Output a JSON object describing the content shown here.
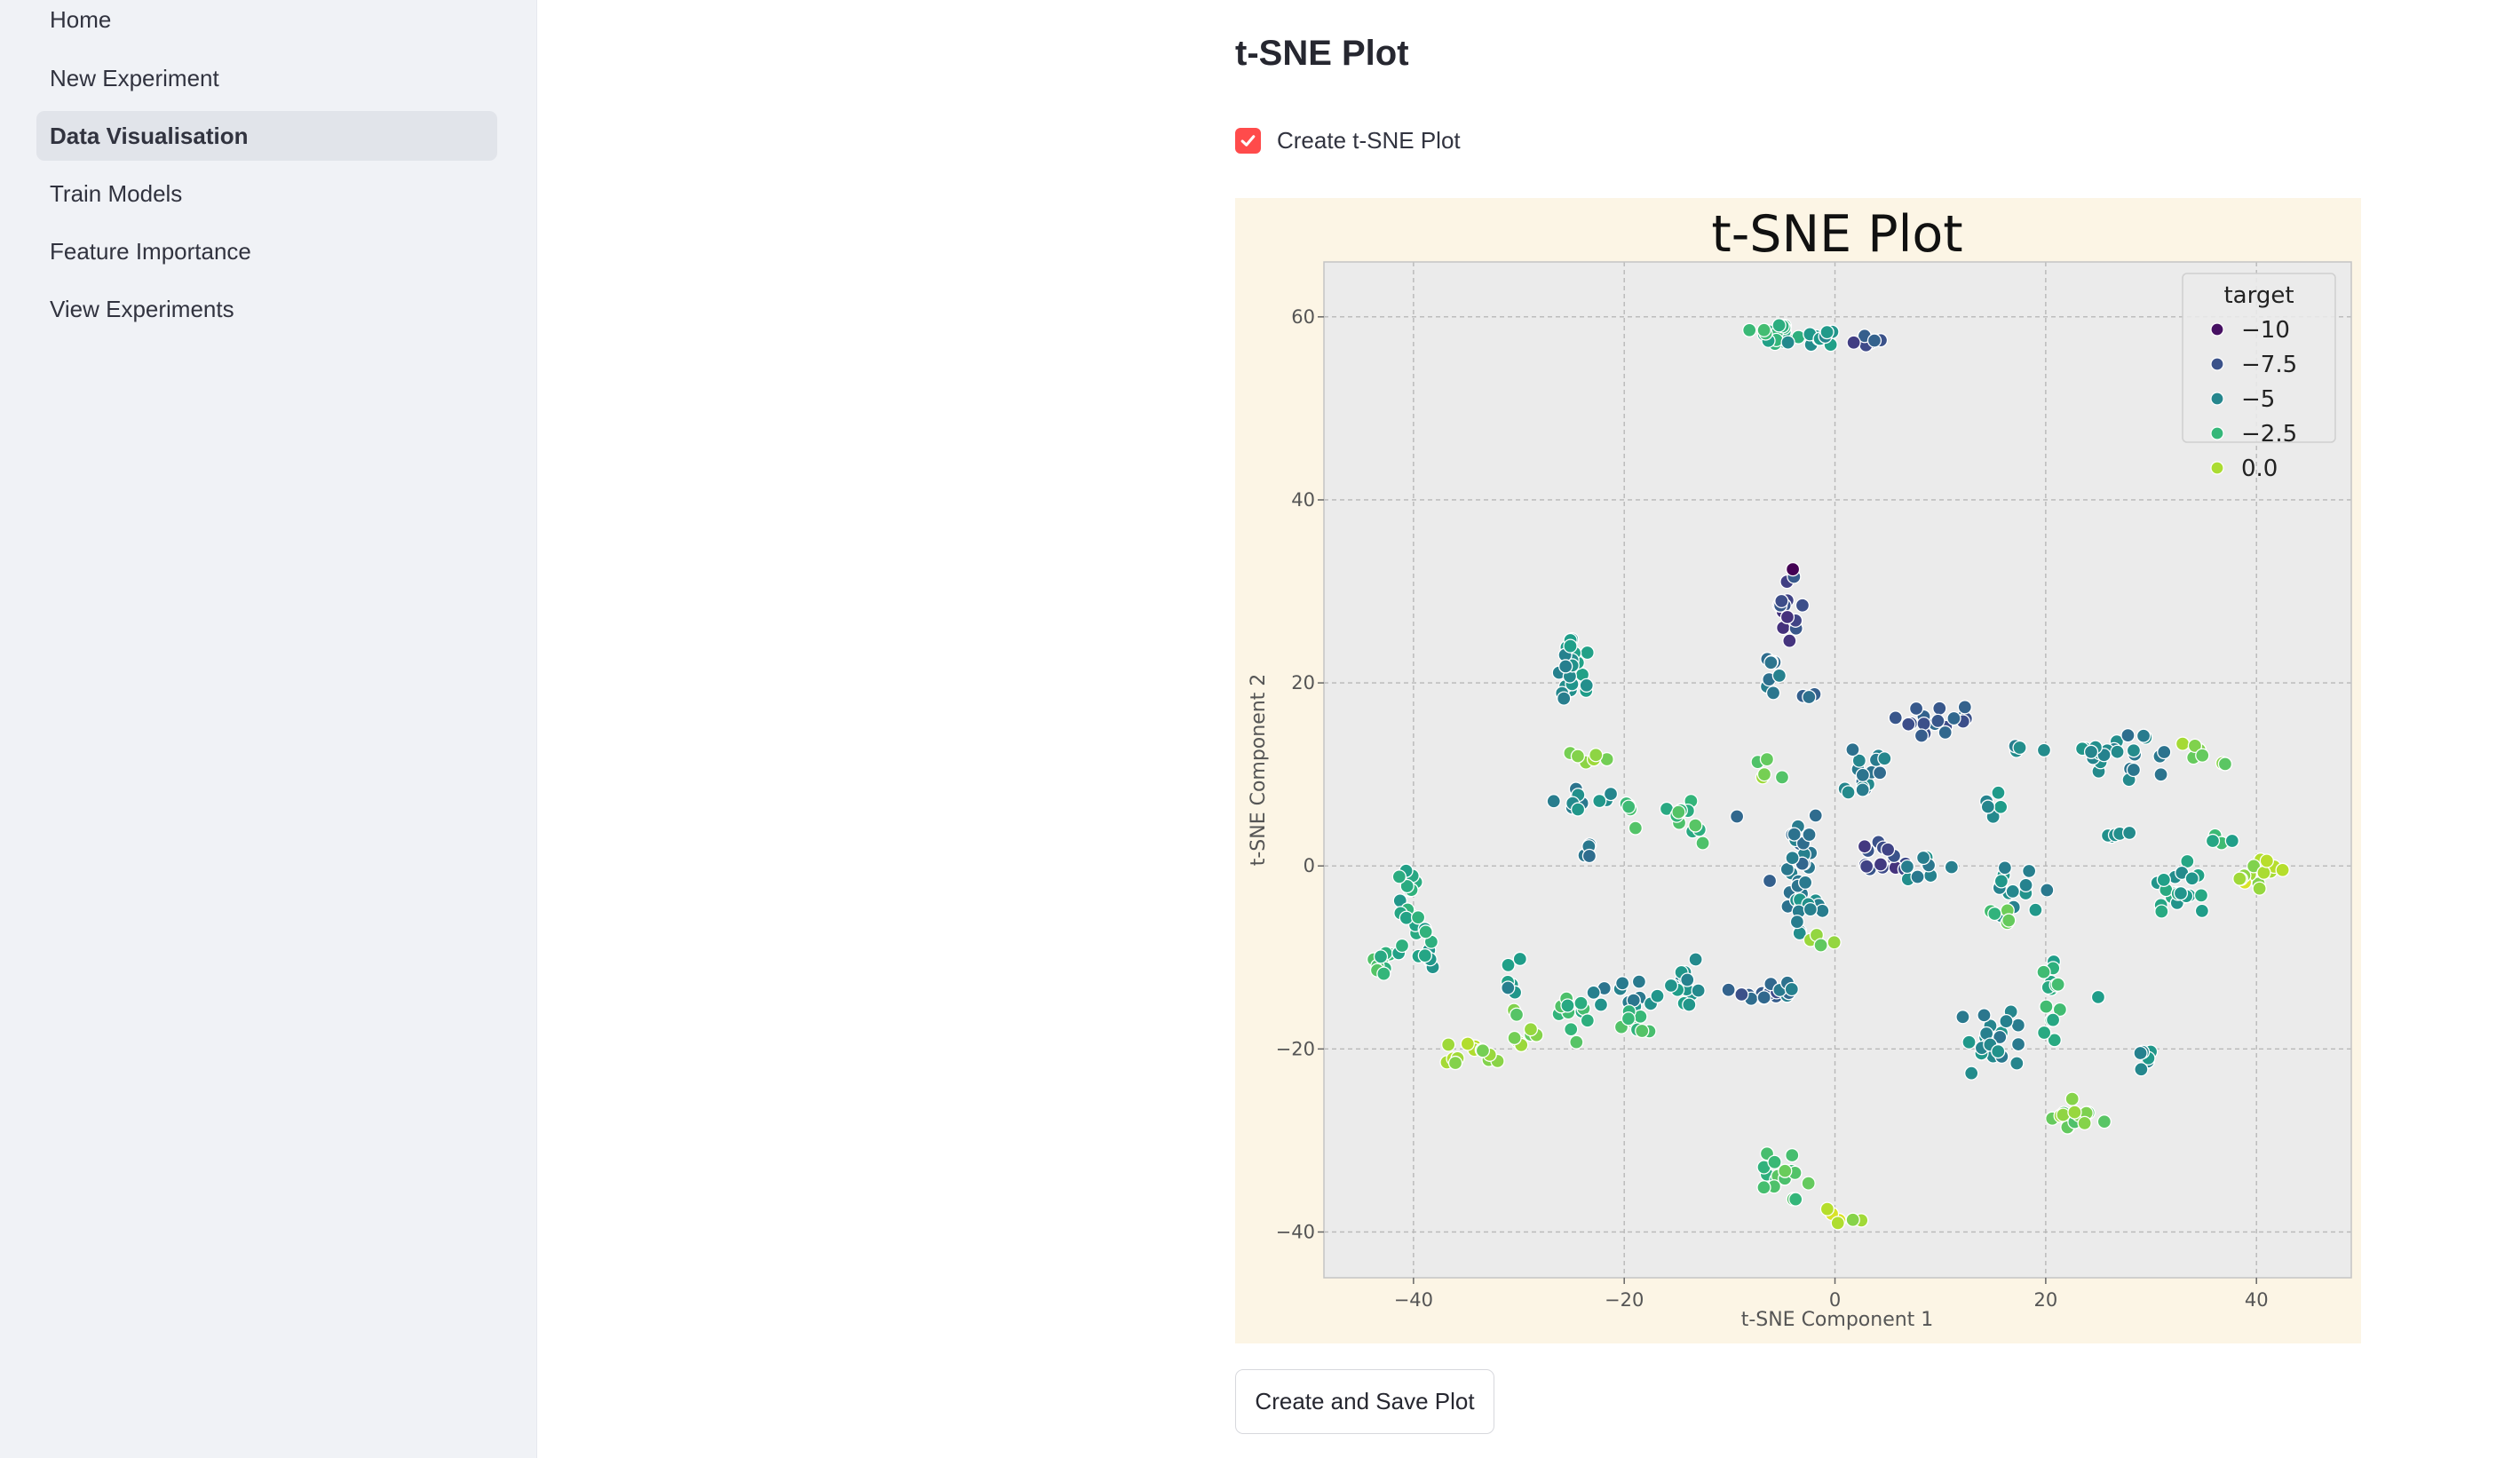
{
  "sidebar": {
    "items": [
      {
        "label": "Home",
        "active": false
      },
      {
        "label": "New Experiment",
        "active": false
      },
      {
        "label": "Data Visualisation",
        "active": true
      },
      {
        "label": "Train Models",
        "active": false
      },
      {
        "label": "Feature Importance",
        "active": false
      },
      {
        "label": "View Experiments",
        "active": false
      }
    ]
  },
  "main": {
    "title": "t-SNE Plot",
    "checkbox": {
      "label": "Create t-SNE Plot",
      "checked": true
    },
    "save_button_label": "Create and Save Plot"
  },
  "colors": {
    "accent": "#ff4b4b",
    "sidebar_bg": "#f0f2f6",
    "figure_bg": "#fcf5e5",
    "axes_bg": "#ebebeb",
    "colormap": "viridis"
  },
  "chart_data": {
    "type": "scatter",
    "title": "t-SNE Plot",
    "xlabel": "t-SNE Component 1",
    "ylabel": "t-SNE Component 2",
    "xlim": [
      -48.5,
      49
    ],
    "ylim": [
      -45,
      66
    ],
    "xticks": [
      -40,
      -20,
      0,
      20,
      40
    ],
    "yticks": [
      -40,
      -20,
      0,
      20,
      40,
      60
    ],
    "grid": true,
    "legend": {
      "title": "target",
      "placement": "top-right",
      "entries": [
        -10.0,
        -7.5,
        -5.0,
        -2.5,
        0.0
      ]
    },
    "color_range": [
      -10.5,
      1.5
    ],
    "clusters": [
      {
        "x": -6,
        "y": 58.5,
        "dx": 2.2,
        "dy": 1.3,
        "n": 20,
        "c": -3
      },
      {
        "x": -2,
        "y": 57.8,
        "dx": 2,
        "dy": 1,
        "n": 10,
        "c": -4.5
      },
      {
        "x": 3,
        "y": 57.2,
        "dx": 1.8,
        "dy": 0.7,
        "n": 8,
        "c": -7.5
      },
      {
        "x": -4.2,
        "y": 28,
        "dx": 1.2,
        "dy": 3,
        "n": 14,
        "c": -8
      },
      {
        "x": -4.2,
        "y": 32.5,
        "dx": 0.3,
        "dy": 0.3,
        "n": 1,
        "c": -10.5
      },
      {
        "x": -6,
        "y": 21,
        "dx": 0.9,
        "dy": 2.2,
        "n": 8,
        "c": -5.5
      },
      {
        "x": -2.5,
        "y": 18.5,
        "dx": 0.5,
        "dy": 0.4,
        "n": 3,
        "c": -6.5
      },
      {
        "x": -25,
        "y": 21,
        "dx": 1.8,
        "dy": 4,
        "n": 22,
        "c": -4.5
      },
      {
        "x": -22.5,
        "y": 12,
        "dx": 1.5,
        "dy": 0.6,
        "n": 6,
        "c": -1
      },
      {
        "x": -24,
        "y": 7,
        "dx": 2,
        "dy": 2.5,
        "n": 12,
        "c": -5
      },
      {
        "x": -23.5,
        "y": 2,
        "dx": 0.5,
        "dy": 1.5,
        "n": 4,
        "c": -6
      },
      {
        "x": -19.5,
        "y": 6,
        "dx": 1,
        "dy": 2,
        "n": 5,
        "c": -2.5
      },
      {
        "x": -14,
        "y": 5,
        "dx": 2.5,
        "dy": 2,
        "n": 12,
        "c": -2.5
      },
      {
        "x": -9.5,
        "y": 5.5,
        "dx": 0.3,
        "dy": 0.3,
        "n": 1,
        "c": -6
      },
      {
        "x": -6,
        "y": 10.5,
        "dx": 1.5,
        "dy": 1.5,
        "n": 5,
        "c": -1
      },
      {
        "x": -3,
        "y": 0,
        "dx": 2,
        "dy": 5,
        "n": 24,
        "c": -6
      },
      {
        "x": -3,
        "y": -5,
        "dx": 2.5,
        "dy": 2,
        "n": 12,
        "c": -5
      },
      {
        "x": -1,
        "y": -8,
        "dx": 1.2,
        "dy": 1,
        "n": 4,
        "c": -1
      },
      {
        "x": 3,
        "y": 10,
        "dx": 2,
        "dy": 2.5,
        "n": 18,
        "c": -5.5
      },
      {
        "x": 5,
        "y": 0.5,
        "dx": 2.5,
        "dy": 1.8,
        "n": 16,
        "c": -8
      },
      {
        "x": 8.5,
        "y": -0.5,
        "dx": 3,
        "dy": 1.5,
        "n": 8,
        "c": -5
      },
      {
        "x": 10.5,
        "y": 15.5,
        "dx": 4,
        "dy": 1.7,
        "n": 18,
        "c": -7
      },
      {
        "x": 18,
        "y": 12.8,
        "dx": 2,
        "dy": 0.4,
        "n": 4,
        "c": -5.5
      },
      {
        "x": 15.5,
        "y": 6,
        "dx": 1,
        "dy": 1.5,
        "n": 5,
        "c": -4.5
      },
      {
        "x": 17,
        "y": -2.5,
        "dx": 3,
        "dy": 2.5,
        "n": 14,
        "c": -5
      },
      {
        "x": 15.5,
        "y": -5.5,
        "dx": 1.5,
        "dy": 1,
        "n": 5,
        "c": -2
      },
      {
        "x": 14.5,
        "y": -19.5,
        "dx": 2.5,
        "dy": 3,
        "n": 22,
        "c": -5
      },
      {
        "x": 20.5,
        "y": -16,
        "dx": 1.5,
        "dy": 5.5,
        "n": 14,
        "c": -3
      },
      {
        "x": 22,
        "y": -27.5,
        "dx": 2.8,
        "dy": 1.5,
        "n": 14,
        "c": -1
      },
      {
        "x": 29,
        "y": -20.5,
        "dx": 1.2,
        "dy": 1.5,
        "n": 6,
        "c": -4.5
      },
      {
        "x": 25,
        "y": -14.5,
        "dx": 0.3,
        "dy": 0.3,
        "n": 1,
        "c": -3
      },
      {
        "x": 25.5,
        "y": 12.5,
        "dx": 2,
        "dy": 2,
        "n": 12,
        "c": -5
      },
      {
        "x": 29,
        "y": 12,
        "dx": 2.5,
        "dy": 3,
        "n": 12,
        "c": -5.5
      },
      {
        "x": 27,
        "y": 3,
        "dx": 1.2,
        "dy": 1.5,
        "n": 5,
        "c": -4
      },
      {
        "x": 33,
        "y": -2.5,
        "dx": 2.5,
        "dy": 2.5,
        "n": 20,
        "c": -4
      },
      {
        "x": 35,
        "y": 12,
        "dx": 2,
        "dy": 1.5,
        "n": 7,
        "c": -1
      },
      {
        "x": 40,
        "y": -1,
        "dx": 2.2,
        "dy": 1.5,
        "n": 14,
        "c": 0
      },
      {
        "x": 36.5,
        "y": 3,
        "dx": 1.5,
        "dy": 0.6,
        "n": 4,
        "c": -3
      },
      {
        "x": -43,
        "y": -11,
        "dx": 0.7,
        "dy": 2.2,
        "n": 10,
        "c": -2.5
      },
      {
        "x": -40.5,
        "y": -4,
        "dx": 1.3,
        "dy": 5,
        "n": 18,
        "c": -3.5
      },
      {
        "x": -38.5,
        "y": -9,
        "dx": 0.9,
        "dy": 3,
        "n": 10,
        "c": -3.5
      },
      {
        "x": -34.5,
        "y": -20.5,
        "dx": 2.5,
        "dy": 1,
        "n": 14,
        "c": -0.5
      },
      {
        "x": -30.5,
        "y": -12,
        "dx": 0.8,
        "dy": 2,
        "n": 6,
        "c": -4.5
      },
      {
        "x": -30,
        "y": -17.5,
        "dx": 1.5,
        "dy": 1.5,
        "n": 8,
        "c": -1
      },
      {
        "x": -25,
        "y": -16,
        "dx": 1.8,
        "dy": 2.5,
        "n": 12,
        "c": -2.5
      },
      {
        "x": -20,
        "y": -13.5,
        "dx": 2.5,
        "dy": 2,
        "n": 12,
        "c": -5
      },
      {
        "x": -19,
        "y": -17,
        "dx": 2,
        "dy": 1.2,
        "n": 10,
        "c": -2
      },
      {
        "x": -14.5,
        "y": -13,
        "dx": 2.2,
        "dy": 2.2,
        "n": 16,
        "c": -4.5
      },
      {
        "x": -7.5,
        "y": -14,
        "dx": 2.5,
        "dy": 0.7,
        "n": 12,
        "c": -7
      },
      {
        "x": -5,
        "y": -13.2,
        "dx": 1.5,
        "dy": 1.5,
        "n": 6,
        "c": -6
      },
      {
        "x": -4.5,
        "y": -35,
        "dx": 2,
        "dy": 3.5,
        "n": 18,
        "c": -2
      },
      {
        "x": 0.5,
        "y": -38.5,
        "dx": 1.5,
        "dy": 1,
        "n": 6,
        "c": 0
      }
    ]
  }
}
